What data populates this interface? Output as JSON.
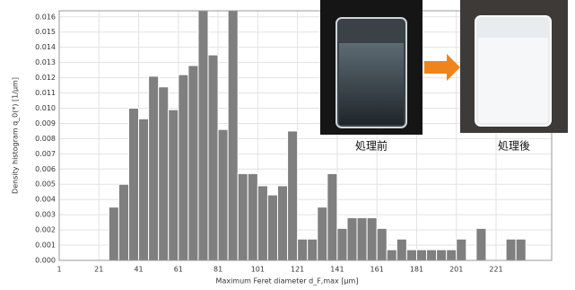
{
  "chart_data": {
    "type": "histogram",
    "x_label": "Maximum Feret diameter d_F,max [µm]",
    "y_label": "Density histogram q_0(*) [1/µm]",
    "bins": [
      26,
      31,
      36,
      41,
      46,
      51,
      56,
      61,
      66,
      71,
      76,
      81,
      86,
      91,
      96,
      101,
      106,
      111,
      116,
      121,
      126,
      131,
      136,
      141,
      146,
      151,
      156,
      161,
      166,
      171,
      176,
      181,
      186,
      191,
      196,
      201,
      206,
      211,
      216,
      221,
      226,
      231,
      236
    ],
    "values": [
      0.0035,
      0.005,
      0.01,
      0.0093,
      0.0121,
      0.0114,
      0.0099,
      0.0122,
      0.0128,
      0.0165,
      0.0135,
      0.0086,
      0.0165,
      0.0057,
      0.0057,
      0.0049,
      0.0043,
      0.0049,
      0.0085,
      0.0014,
      0.0014,
      0.0035,
      0.0057,
      0.0021,
      0.0028,
      0.0028,
      0.0028,
      0.0021,
      0.0007,
      0.0014,
      0.0007,
      0.0007,
      0.0007,
      0.0007,
      0.0007,
      0.0014,
      0,
      0.0021,
      0,
      0,
      0.0014,
      0.0014,
      0.0007
    ],
    "color": "#7f7f7f",
    "xlim": [
      1,
      249
    ],
    "xticks": [
      1,
      21,
      41,
      61,
      81,
      101,
      121,
      141,
      161,
      181,
      201,
      221
    ],
    "ylim": [
      0,
      0.0164
    ],
    "yticks": [
      {
        "value": 0,
        "label": "0.000"
      },
      {
        "value": 0.001,
        "label": "0.001"
      },
      {
        "value": 0.002,
        "label": "0.002"
      },
      {
        "value": 0.003,
        "label": "0.003"
      },
      {
        "value": 0.004,
        "label": "0.004"
      },
      {
        "value": 0.005,
        "label": "0.005"
      },
      {
        "value": 0.006,
        "label": "0.006"
      },
      {
        "value": 0.007,
        "label": "0.007"
      },
      {
        "value": 0.008,
        "label": "0.008"
      },
      {
        "value": 0.009,
        "label": "0.009"
      },
      {
        "value": 0.01,
        "label": "0.010"
      },
      {
        "value": 0.011,
        "label": "0.011"
      },
      {
        "value": 0.012,
        "label": "0.012"
      },
      {
        "value": 0.013,
        "label": "0.013"
      },
      {
        "value": 0.014,
        "label": "0.014"
      },
      {
        "value": 0.015,
        "label": "0.015"
      },
      {
        "value": 0.016,
        "label": "0.016"
      }
    ],
    "grid": true,
    "annotations": [
      "処理前",
      "処理後"
    ]
  }
}
